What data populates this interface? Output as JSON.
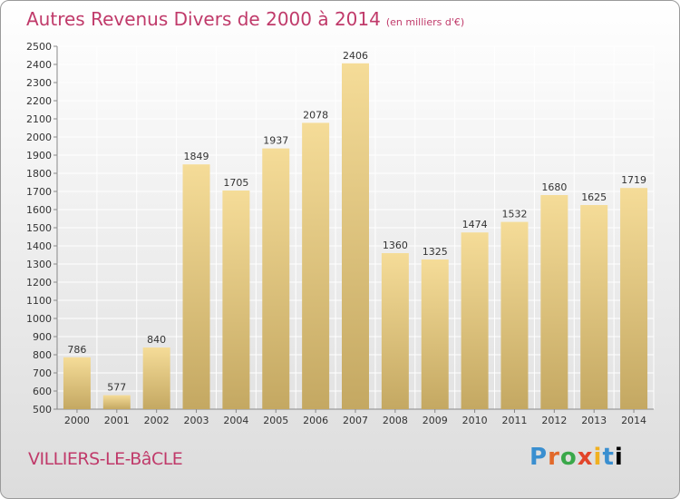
{
  "header": {
    "title": "Autres Revenus Divers de 2000 à 2014",
    "subtitle": "(en milliers d'€)"
  },
  "footer": {
    "place": "VILLIERS-LE-BâCLE",
    "logo_letters": [
      "P",
      "r",
      "o",
      "x",
      "i",
      "t",
      "i"
    ]
  },
  "colors": {
    "title": "#c03a6a",
    "bar_light": "#f5dc98",
    "bar_dark": "#c4a862",
    "grid": "#ffffff"
  },
  "chart_data": {
    "type": "bar",
    "title": "Autres Revenus Divers de 2000 à 2014",
    "subtitle": "(en milliers d'€)",
    "categories": [
      "2000",
      "2001",
      "2002",
      "2003",
      "2004",
      "2005",
      "2006",
      "2007",
      "2008",
      "2009",
      "2010",
      "2011",
      "2012",
      "2013",
      "2014"
    ],
    "values": [
      786,
      577,
      840,
      1849,
      1705,
      1937,
      2078,
      2406,
      1360,
      1325,
      1474,
      1532,
      1680,
      1625,
      1719
    ],
    "ylim": [
      500,
      2500
    ],
    "yticks": [
      500,
      600,
      700,
      800,
      900,
      1000,
      1100,
      1200,
      1300,
      1400,
      1500,
      1600,
      1700,
      1800,
      1900,
      2000,
      2100,
      2200,
      2300,
      2400,
      2500
    ],
    "grid": true,
    "xlabel": "",
    "ylabel": ""
  }
}
